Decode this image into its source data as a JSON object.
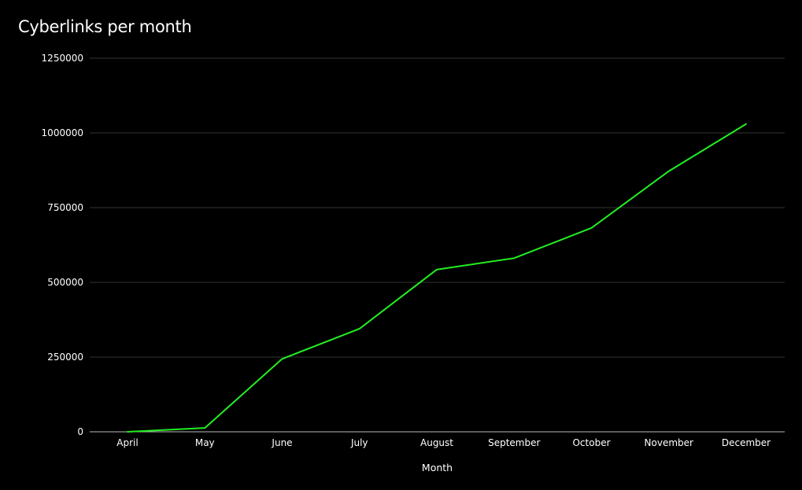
{
  "colors": {
    "background": "#000000",
    "line": "#22ee22",
    "grid": "#333333",
    "axis": "#bbbbbb",
    "text": "#ffffff"
  },
  "chart_data": {
    "type": "line",
    "title": "Cyberlinks per month",
    "xlabel": "Month",
    "ylabel": "",
    "categories": [
      "April",
      "May",
      "June",
      "July",
      "August",
      "September",
      "October",
      "November",
      "December"
    ],
    "series": [
      {
        "values": [
          0,
          13000,
          244000,
          345000,
          543000,
          581000,
          682000,
          872000,
          1030000
        ]
      }
    ],
    "ylim": [
      0,
      1250000
    ],
    "yticks": [
      0,
      250000,
      500000,
      750000,
      1000000,
      1250000
    ],
    "grid": true,
    "legend": "none"
  }
}
